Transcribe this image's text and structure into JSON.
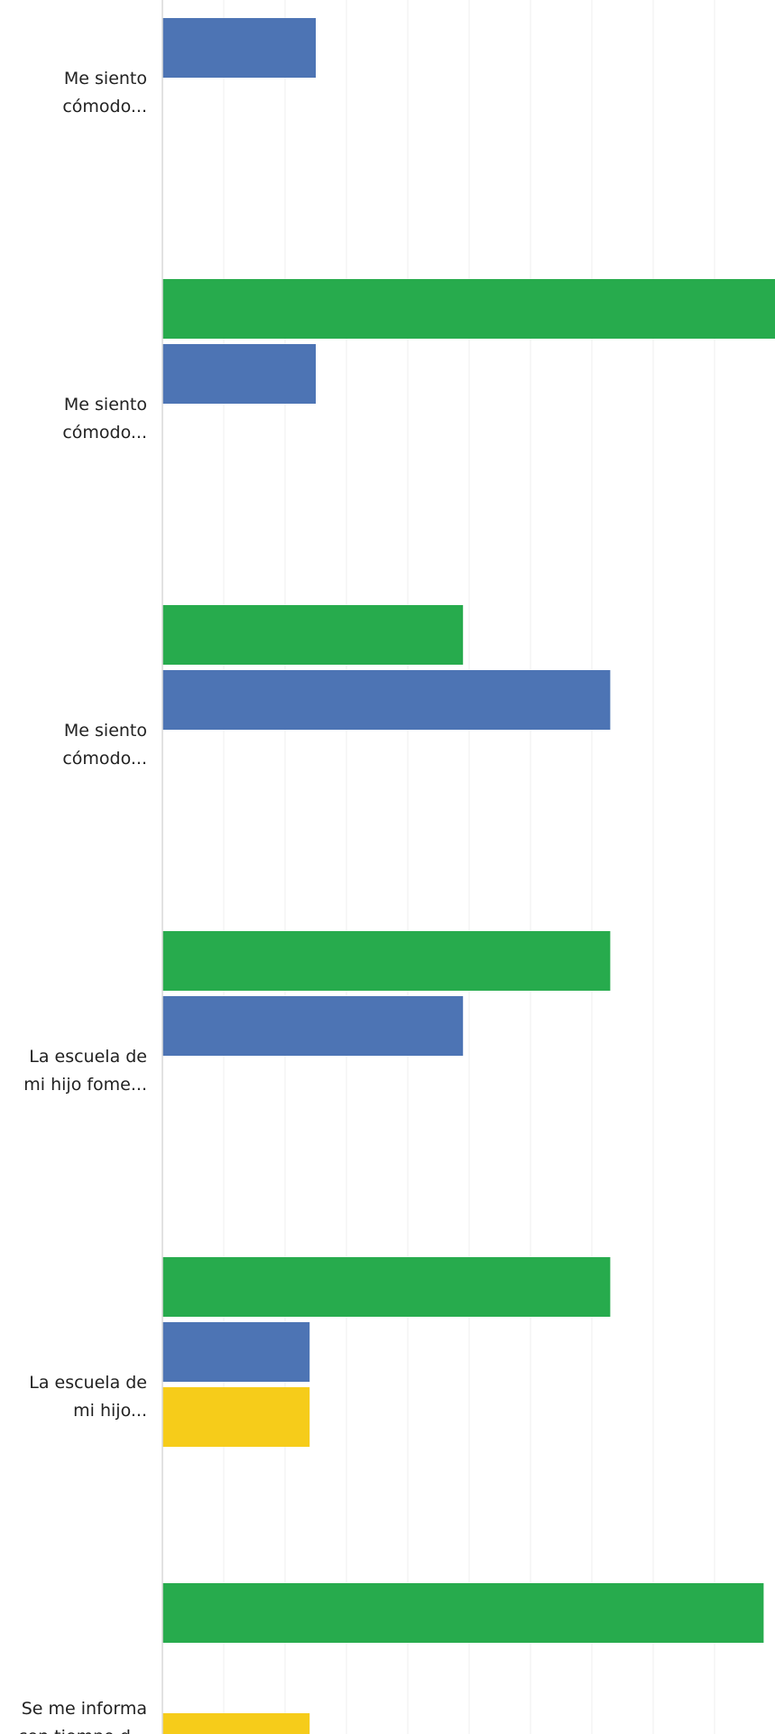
{
  "chart_data": {
    "type": "bar",
    "orientation": "horizontal",
    "categories": [
      [
        "Me siento",
        "cómodo..."
      ],
      [
        "Me siento",
        "cómodo..."
      ],
      [
        "Me siento",
        "cómodo..."
      ],
      [
        "La escuela de",
        "mi hijo fome..."
      ],
      [
        "La escuela de",
        "mi hijo..."
      ],
      [
        "Se me informa",
        "con tiempo d..."
      ]
    ],
    "series": [
      {
        "color": "#27ab4d",
        "values": [
          null,
          100,
          49,
          73,
          73,
          98
        ]
      },
      {
        "color": "#4d74b4",
        "values": [
          25,
          25,
          73,
          49,
          24,
          null
        ]
      },
      {
        "color": "#f6cc1a",
        "values": [
          null,
          null,
          null,
          null,
          24,
          24
        ]
      }
    ],
    "xlim": [
      0,
      100
    ],
    "grid": true,
    "grid_color": "#efefef",
    "axis_color": "#d8d8d8",
    "label_color": "#222222"
  }
}
